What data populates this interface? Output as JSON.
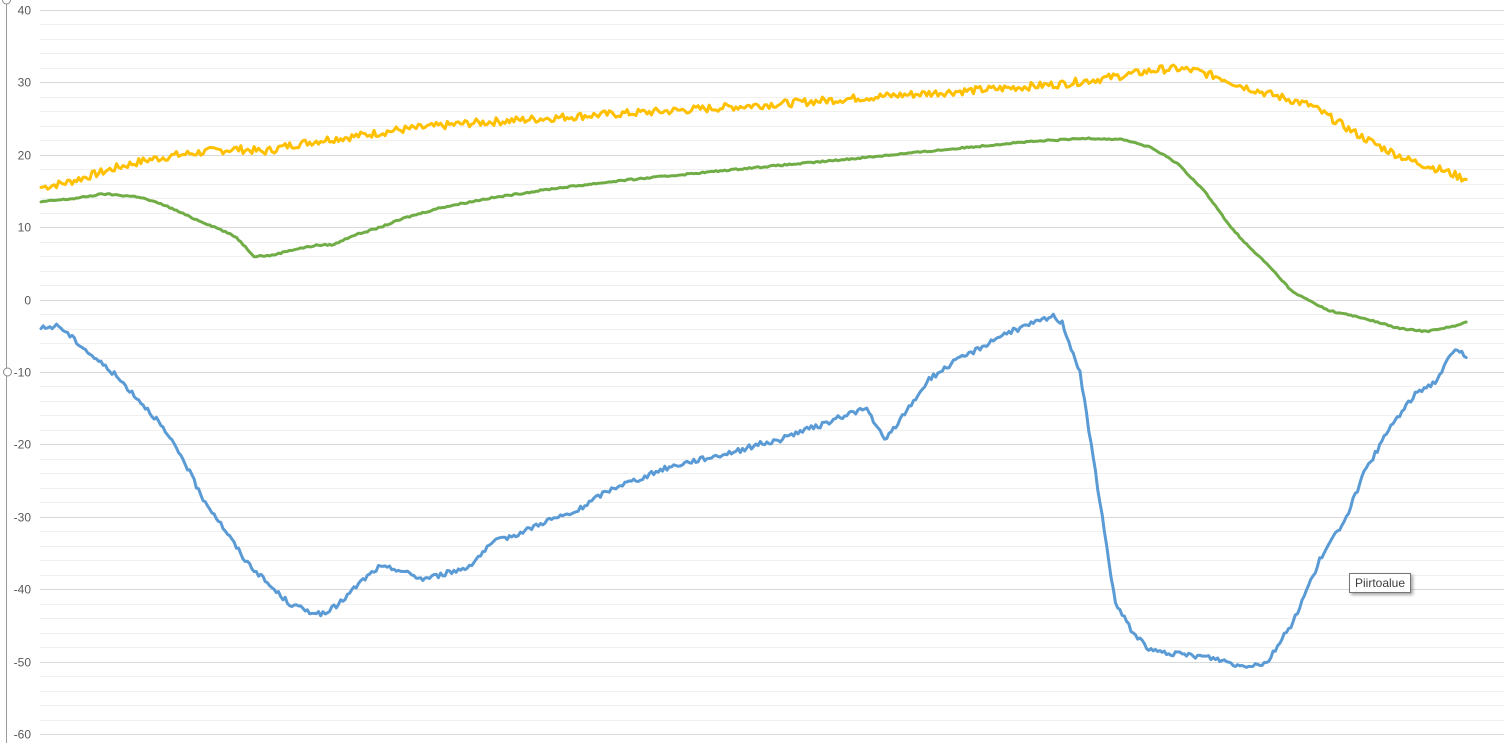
{
  "tooltip": {
    "text": "Piirtoalue"
  },
  "chart_data": {
    "type": "line",
    "title": "",
    "xlabel": "",
    "ylabel": "",
    "ylim": [
      -60,
      40
    ],
    "y_major_step": 10,
    "y_minor_step": 2,
    "y_ticks": [
      "40",
      "30",
      "20",
      "10",
      "0",
      "-10",
      "-20",
      "-30",
      "-40",
      "-50",
      "-60"
    ],
    "grid": true,
    "legend": "none",
    "series": [
      {
        "color": "#FFC000",
        "values": [
          [
            0,
            15.5
          ],
          [
            6,
            16.2
          ],
          [
            12,
            17.3
          ],
          [
            18,
            18.4
          ],
          [
            24,
            19.3
          ],
          [
            30,
            19.9
          ],
          [
            38,
            20.5
          ],
          [
            44,
            20.8
          ],
          [
            48,
            20.6
          ],
          [
            50,
            20.4
          ],
          [
            56,
            21.3
          ],
          [
            64,
            22.1
          ],
          [
            70,
            22.5
          ],
          [
            80,
            23.4
          ],
          [
            95,
            24.3
          ],
          [
            110,
            24.9
          ],
          [
            125,
            25.5
          ],
          [
            140,
            26.0
          ],
          [
            155,
            26.6
          ],
          [
            170,
            27.2
          ],
          [
            185,
            27.9
          ],
          [
            200,
            28.5
          ],
          [
            215,
            29.1
          ],
          [
            230,
            29.8
          ],
          [
            240,
            30.6
          ],
          [
            248,
            31.4
          ],
          [
            252,
            31.8
          ],
          [
            256,
            31.9
          ],
          [
            260,
            31.6
          ],
          [
            266,
            30.6
          ],
          [
            270,
            29.6
          ],
          [
            276,
            28.5
          ],
          [
            282,
            27.5
          ],
          [
            286,
            26.8
          ],
          [
            290,
            25.3
          ],
          [
            296,
            23.0
          ],
          [
            302,
            21.0
          ],
          [
            308,
            19.3
          ],
          [
            316,
            17.8
          ],
          [
            321,
            16.6
          ]
        ]
      },
      {
        "color": "#70AD47",
        "values": [
          [
            0,
            13.5
          ],
          [
            8,
            14.0
          ],
          [
            14,
            14.6
          ],
          [
            22,
            14.2
          ],
          [
            28,
            13.0
          ],
          [
            34,
            11.3
          ],
          [
            40,
            9.8
          ],
          [
            44,
            8.6
          ],
          [
            48,
            6.0
          ],
          [
            52,
            6.1
          ],
          [
            56,
            6.8
          ],
          [
            62,
            7.5
          ],
          [
            66,
            7.6
          ],
          [
            70,
            8.8
          ],
          [
            76,
            9.9
          ],
          [
            82,
            11.3
          ],
          [
            90,
            12.7
          ],
          [
            100,
            13.9
          ],
          [
            115,
            15.3
          ],
          [
            130,
            16.4
          ],
          [
            145,
            17.3
          ],
          [
            160,
            18.2
          ],
          [
            175,
            19.0
          ],
          [
            190,
            19.9
          ],
          [
            205,
            20.8
          ],
          [
            220,
            21.7
          ],
          [
            236,
            22.3
          ],
          [
            244,
            22.1
          ],
          [
            250,
            21.0
          ],
          [
            256,
            18.8
          ],
          [
            262,
            15.0
          ],
          [
            268,
            10.0
          ],
          [
            272,
            7.3
          ],
          [
            276,
            5.0
          ],
          [
            282,
            1.0
          ],
          [
            290,
            -1.5
          ],
          [
            298,
            -2.6
          ],
          [
            306,
            -4.0
          ],
          [
            312,
            -4.4
          ],
          [
            316,
            -3.9
          ],
          [
            319,
            -3.6
          ],
          [
            321,
            -3.1
          ]
        ]
      },
      {
        "color": "#5B9BD5",
        "values": [
          [
            0,
            -4.0
          ],
          [
            4,
            -3.6
          ],
          [
            8,
            -5.8
          ],
          [
            12,
            -8.0
          ],
          [
            16,
            -10.0
          ],
          [
            20,
            -12.5
          ],
          [
            26,
            -16.5
          ],
          [
            32,
            -22.0
          ],
          [
            36,
            -27.0
          ],
          [
            40,
            -30.5
          ],
          [
            46,
            -36.0
          ],
          [
            52,
            -39.8
          ],
          [
            56,
            -42.0
          ],
          [
            60,
            -43.0
          ],
          [
            64,
            -43.5
          ],
          [
            68,
            -41.5
          ],
          [
            72,
            -39.0
          ],
          [
            76,
            -37.0
          ],
          [
            80,
            -37.2
          ],
          [
            86,
            -38.6
          ],
          [
            90,
            -38.0
          ],
          [
            96,
            -37.0
          ],
          [
            102,
            -33.5
          ],
          [
            108,
            -32.2
          ],
          [
            114,
            -30.5
          ],
          [
            120,
            -29.5
          ],
          [
            126,
            -27.0
          ],
          [
            130,
            -25.7
          ],
          [
            136,
            -24.5
          ],
          [
            140,
            -23.4
          ],
          [
            146,
            -22.4
          ],
          [
            152,
            -21.6
          ],
          [
            158,
            -20.7
          ],
          [
            162,
            -19.9
          ],
          [
            166,
            -19.5
          ],
          [
            170,
            -18.4
          ],
          [
            176,
            -17.3
          ],
          [
            182,
            -15.7
          ],
          [
            186,
            -15.1
          ],
          [
            190,
            -19.5
          ],
          [
            194,
            -16.2
          ],
          [
            200,
            -11.0
          ],
          [
            206,
            -8.5
          ],
          [
            212,
            -6.5
          ],
          [
            216,
            -5.0
          ],
          [
            222,
            -3.6
          ],
          [
            228,
            -2.3
          ],
          [
            230,
            -3.2
          ],
          [
            234,
            -10.0
          ],
          [
            238,
            -26.0
          ],
          [
            242,
            -42.0
          ],
          [
            246,
            -46.0
          ],
          [
            250,
            -48.5
          ],
          [
            256,
            -49.0
          ],
          [
            262,
            -49.3
          ],
          [
            266,
            -49.8
          ],
          [
            270,
            -50.6
          ],
          [
            276,
            -50.2
          ],
          [
            282,
            -44.5
          ],
          [
            288,
            -36.0
          ],
          [
            294,
            -30.0
          ],
          [
            298,
            -24.0
          ],
          [
            304,
            -17.5
          ],
          [
            310,
            -12.7
          ],
          [
            314,
            -11.4
          ],
          [
            318,
            -7.2
          ],
          [
            320,
            -7.0
          ],
          [
            321,
            -8.0
          ]
        ]
      }
    ]
  }
}
